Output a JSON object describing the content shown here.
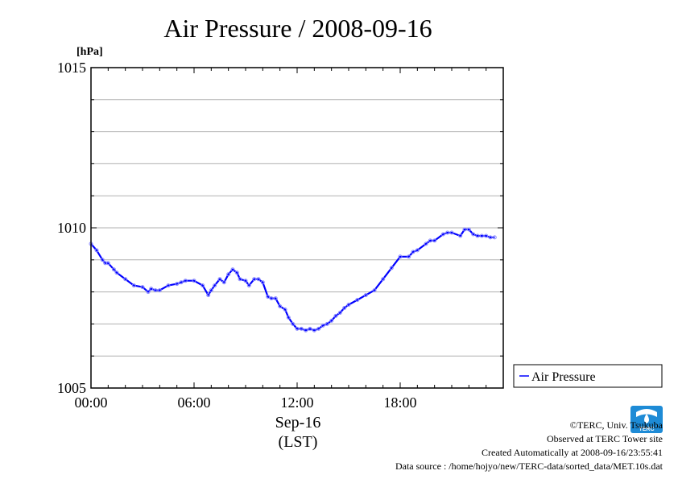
{
  "chart_data": {
    "type": "line",
    "title": "Air Pressure / 2008-09-16",
    "ylabel": "[hPa]",
    "xlabel_lines": [
      "Sep-16",
      "(LST)"
    ],
    "ylim": [
      1005,
      1015
    ],
    "y_ticks": [
      "1005",
      "1010",
      "1015"
    ],
    "xlim_hours": [
      0,
      24
    ],
    "x_ticks": [
      "00:00",
      "06:00",
      "12:00",
      "18:00"
    ],
    "grid": true,
    "legend_position": "right",
    "series": [
      {
        "name": "Air Pressure",
        "color": "#0000ff",
        "marker_color": "#8a8aff",
        "x_hours": [
          0,
          0.33,
          0.67,
          0.83,
          1.0,
          1.33,
          1.5,
          2.0,
          2.5,
          3.0,
          3.33,
          3.5,
          3.75,
          4.0,
          4.5,
          5.0,
          5.25,
          5.5,
          6.0,
          6.5,
          6.83,
          7.0,
          7.2,
          7.5,
          7.75,
          8.0,
          8.25,
          8.5,
          8.67,
          9.0,
          9.2,
          9.5,
          9.75,
          10.0,
          10.3,
          10.5,
          10.75,
          11.0,
          11.3,
          11.5,
          11.75,
          12.0,
          12.25,
          12.5,
          12.75,
          13.0,
          13.25,
          13.5,
          13.75,
          14.0,
          14.25,
          14.5,
          14.75,
          15.0,
          15.5,
          16.0,
          16.5,
          17.0,
          17.5,
          18.0,
          18.5,
          18.75,
          19.0,
          19.5,
          19.75,
          20.0,
          20.5,
          20.75,
          21.0,
          21.5,
          21.75,
          22.0,
          22.25,
          22.5,
          22.75,
          23.0,
          23.25,
          23.5
        ],
        "values": [
          1009.5,
          1009.3,
          1009.0,
          1008.9,
          1008.9,
          1008.7,
          1008.6,
          1008.4,
          1008.2,
          1008.15,
          1008.0,
          1008.1,
          1008.05,
          1008.05,
          1008.2,
          1008.25,
          1008.3,
          1008.35,
          1008.35,
          1008.2,
          1007.9,
          1008.05,
          1008.2,
          1008.4,
          1008.3,
          1008.55,
          1008.7,
          1008.6,
          1008.4,
          1008.35,
          1008.2,
          1008.4,
          1008.4,
          1008.3,
          1007.85,
          1007.8,
          1007.8,
          1007.55,
          1007.45,
          1007.2,
          1007.0,
          1006.85,
          1006.85,
          1006.8,
          1006.85,
          1006.8,
          1006.85,
          1006.95,
          1007.0,
          1007.1,
          1007.25,
          1007.35,
          1007.5,
          1007.6,
          1007.75,
          1007.9,
          1008.05,
          1008.4,
          1008.75,
          1009.1,
          1009.1,
          1009.25,
          1009.3,
          1009.5,
          1009.6,
          1009.6,
          1009.8,
          1009.85,
          1009.85,
          1009.75,
          1009.95,
          1009.95,
          1009.8,
          1009.75,
          1009.75,
          1009.75,
          1009.7,
          1009.7
        ]
      }
    ]
  },
  "footer": {
    "copyright": "©TERC, Univ. Tsukuba",
    "observed": "Observed at TERC Tower site",
    "created": "Created Automatically at 2008-09-16/23:55:41",
    "source": "Data source : /home/hojyo/new/TERC-data/sorted_data/MET.10s.dat"
  },
  "logo": {
    "text": "TERC",
    "color": "#1e8bd6"
  }
}
